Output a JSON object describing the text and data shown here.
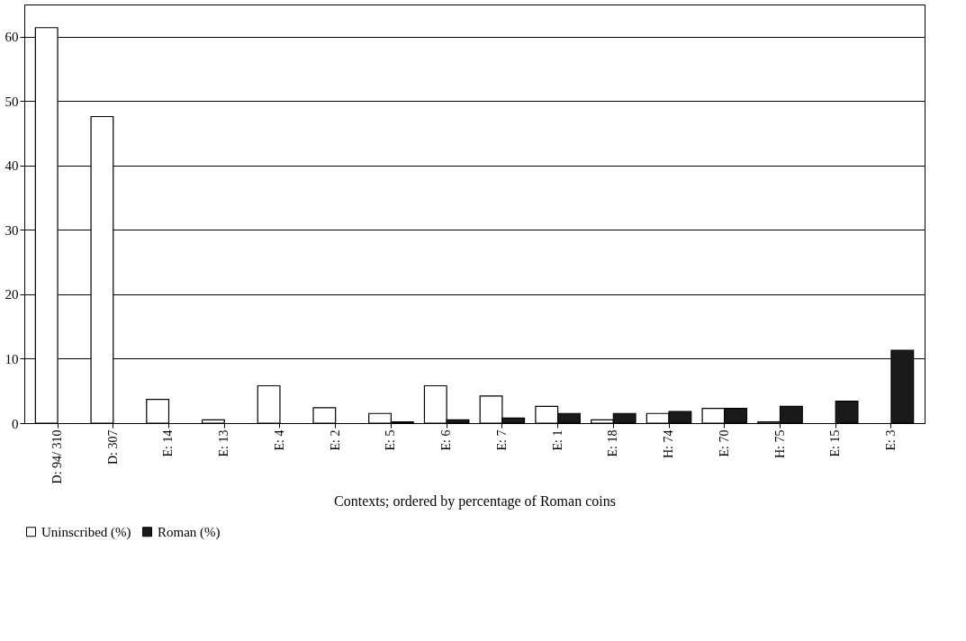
{
  "chart_data": {
    "type": "bar",
    "xlabel": "Contexts; ordered by percentage of Roman coins",
    "categories": [
      "D: 94/ 310",
      "D: 307",
      "E: 14",
      "E: 13",
      "E: 4",
      "E: 2",
      "E: 5",
      "E: 6",
      "E: 7",
      "E: 1",
      "E: 18",
      "H: 74",
      "E: 70",
      "H: 75",
      "E: 15",
      "E: 3"
    ],
    "series": [
      {
        "name": "Uninscribed (%)",
        "color": "#ffffff",
        "values": [
          61.4,
          47.6,
          3.7,
          0.5,
          5.8,
          2.4,
          1.5,
          5.8,
          4.2,
          2.6,
          0.5,
          1.5,
          2.3,
          0.2,
          null,
          null
        ]
      },
      {
        "name": "Roman (%)",
        "color": "#1a1a1a",
        "values": [
          null,
          null,
          null,
          null,
          null,
          null,
          0.2,
          0.5,
          0.8,
          1.5,
          1.5,
          1.8,
          2.3,
          2.6,
          3.4,
          11.3
        ]
      }
    ],
    "ylim": [
      0,
      65
    ],
    "yticks": [
      0,
      10,
      20,
      30,
      40,
      50,
      60
    ],
    "grid": "y",
    "legend": "bottom"
  }
}
